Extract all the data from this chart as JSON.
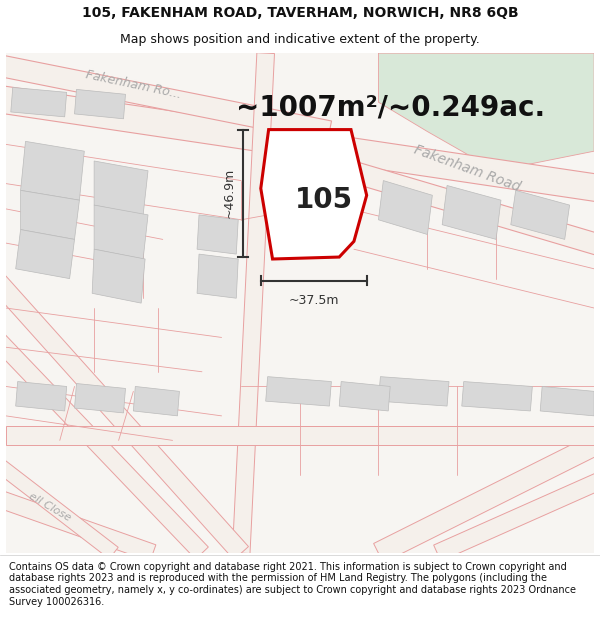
{
  "title_line1": "105, FAKENHAM ROAD, TAVERHAM, NORWICH, NR8 6QB",
  "title_line2": "Map shows position and indicative extent of the property.",
  "area_text": "~1007m²/~0.249ac.",
  "house_number": "105",
  "dim_horizontal": "~37.5m",
  "dim_vertical": "~46.9m",
  "footer_text": "Contains OS data © Crown copyright and database right 2021. This information is subject to Crown copyright and database rights 2023 and is reproduced with the permission of HM Land Registry. The polygons (including the associated geometry, namely x, y co-ordinates) are subject to Crown copyright and database rights 2023 Ordnance Survey 100026316.",
  "bg_color": "#f7f5f2",
  "road_outline_color": "#e8a0a0",
  "road_fill_color": "#ffffff",
  "green_fill": "#d8e8d8",
  "building_fill": "#d8d8d8",
  "building_edge": "#bbbbbb",
  "plot_color": "#cc0000",
  "plot_fill": "#ffffff",
  "road_label_color": "#aaaaaa",
  "dim_color": "#333333",
  "area_text_color": "#111111",
  "title_color": "#111111",
  "footer_color": "#111111",
  "title_fontsize": 10,
  "subtitle_fontsize": 9,
  "area_fontsize": 20,
  "house_fontsize": 20,
  "dim_fontsize": 9,
  "road_label_fontsize": 9,
  "footer_fontsize": 7
}
